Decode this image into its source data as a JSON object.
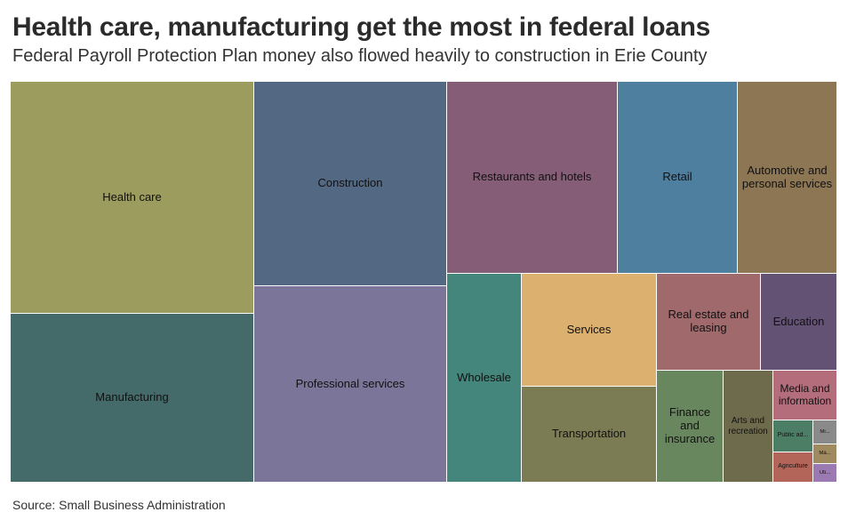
{
  "header": {
    "title": "Health care, manufacturing get the most in federal loans",
    "subtitle": "Federal Payroll Protection Plan money also flowed heavily to construction in Erie County"
  },
  "footer": {
    "source": "Source: Small Business Administration"
  },
  "chart_data": {
    "type": "treemap",
    "title": "Health care, manufacturing get the most in federal loans",
    "subtitle": "Federal Payroll Protection Plan money also flowed heavily to construction in Erie County",
    "items": [
      {
        "label": "Health care",
        "color": "#9c9c5e"
      },
      {
        "label": "Manufacturing",
        "color": "#446b6a"
      },
      {
        "label": "Construction",
        "color": "#536882"
      },
      {
        "label": "Professional services",
        "color": "#7b7599"
      },
      {
        "label": "Restaurants and hotels",
        "color": "#865d77"
      },
      {
        "label": "Retail",
        "color": "#4e7f9e"
      },
      {
        "label": "Automotive and personal services",
        "color": "#8d7654"
      },
      {
        "label": "Wholesale",
        "color": "#44857c"
      },
      {
        "label": "Services",
        "color": "#dcb06f"
      },
      {
        "label": "Transportation",
        "color": "#7b7c53"
      },
      {
        "label": "Real estate and leasing",
        "color": "#a0696c"
      },
      {
        "label": "Education",
        "color": "#645275"
      },
      {
        "label": "Finance and insurance",
        "color": "#68875f"
      },
      {
        "label": "Arts and recreation",
        "color": "#6e6b4c"
      },
      {
        "label": "Media and information",
        "color": "#b36d7b"
      },
      {
        "label": "Public ad...",
        "color": "#4c7e66"
      },
      {
        "label": "Mi...",
        "color": "#8a8a8a"
      },
      {
        "label": "Ma...",
        "color": "#a08a60"
      },
      {
        "label": "Agriculture",
        "color": "#b3655a"
      },
      {
        "label": "Uti...",
        "color": "#9a7ab0"
      }
    ]
  }
}
